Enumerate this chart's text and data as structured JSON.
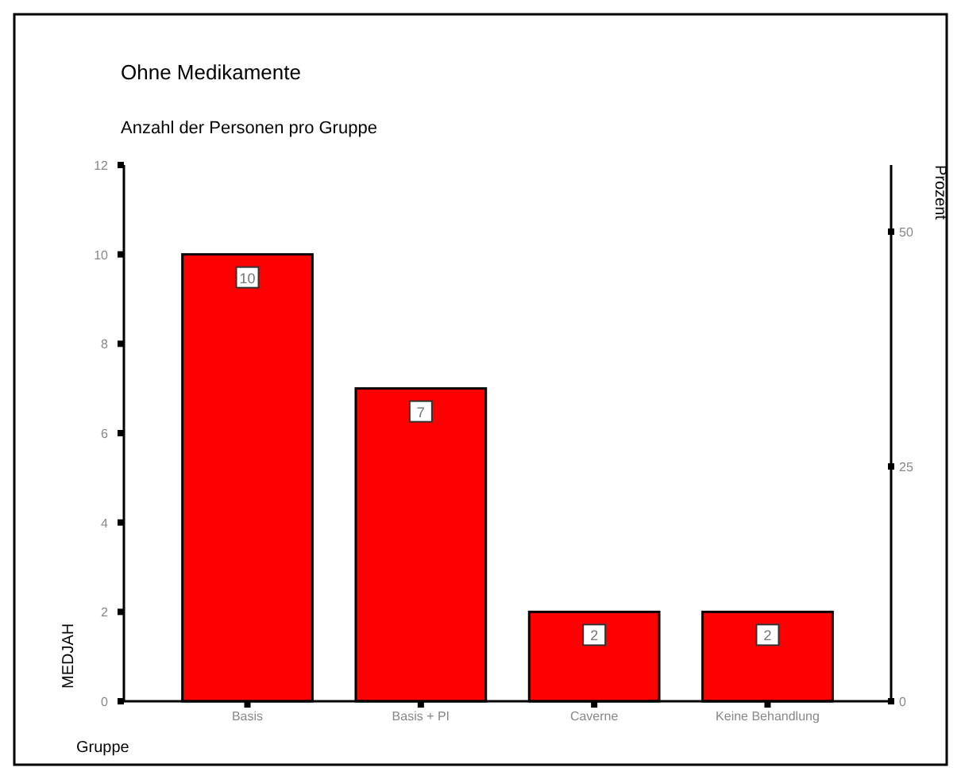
{
  "chart_data": {
    "type": "bar",
    "title": "Ohne Medikamente",
    "subtitle": "Anzahl der Personen pro Gruppe",
    "xlabel": "Gruppe",
    "ylabel": "MEDJAH",
    "y2label": "Prozent",
    "categories": [
      "Basis",
      "Basis + PI",
      "Caverne",
      "Keine Behandlung"
    ],
    "series": [
      {
        "color": "#ff0000",
        "values": [
          10,
          7,
          2,
          2
        ]
      }
    ],
    "ylim": [
      0,
      12
    ],
    "yticks": [
      0,
      2,
      4,
      6,
      8,
      10,
      12
    ],
    "y2lim": [
      0,
      57.1
    ],
    "y2ticks": [
      0,
      25,
      50
    ],
    "data_labels": true,
    "grid": false
  }
}
